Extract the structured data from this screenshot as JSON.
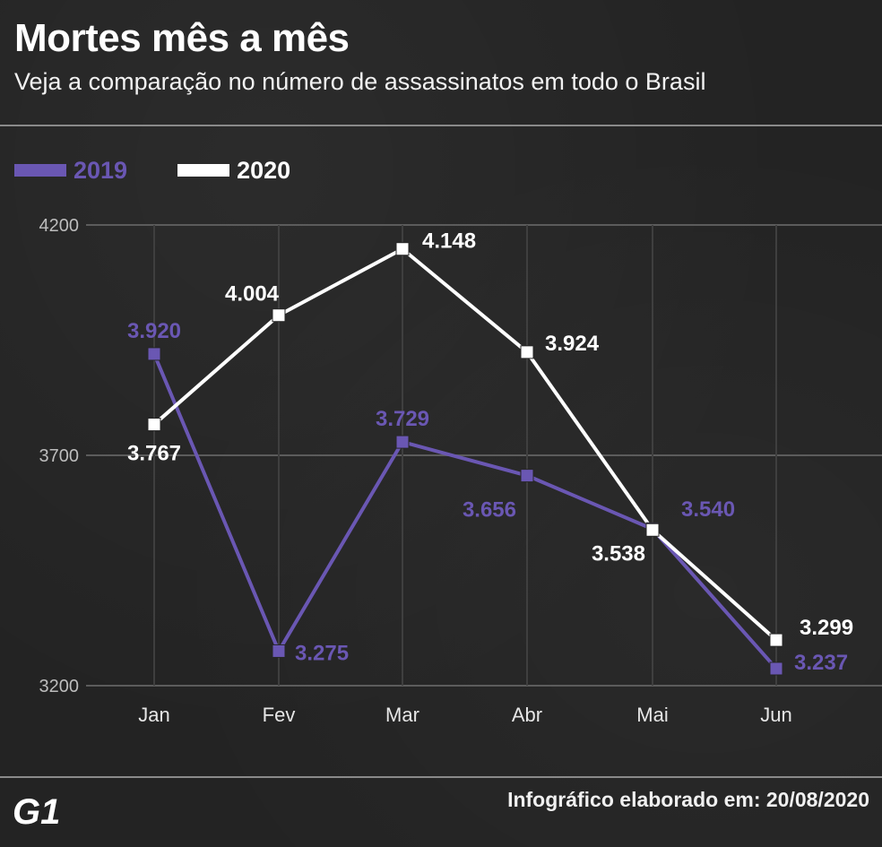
{
  "header": {
    "title": "Mortes mês a mês",
    "subtitle": "Veja a comparação no número de assassinatos em todo o Brasil"
  },
  "footer": {
    "logo": "G1",
    "credit": "Infográfico elaborado em: 20/08/2020"
  },
  "colors": {
    "background": "#262626",
    "series_2019": "#6a57b3",
    "series_2020": "#ffffff",
    "grid": "#5c5c5c",
    "axis_text": "#bdbdbd"
  },
  "chart_data": {
    "type": "line",
    "title": "Mortes mês a mês",
    "subtitle": "Veja a comparação no número de assassinatos em todo o Brasil",
    "xlabel": "",
    "ylabel": "",
    "categories": [
      "Jan",
      "Fev",
      "Mar",
      "Abr",
      "Mai",
      "Jun"
    ],
    "ylim": [
      3200,
      4200
    ],
    "yticks": [
      "3200",
      "3700",
      "4200"
    ],
    "grid": true,
    "legend": "top-left",
    "series": [
      {
        "name": "2019",
        "values": [
          3920,
          3275,
          3729,
          3656,
          3540,
          3237
        ],
        "labels": [
          "3.920",
          "3.275",
          "3.729",
          "3.656",
          "3.540",
          "3.237"
        ],
        "color": "#6a57b3"
      },
      {
        "name": "2020",
        "values": [
          3767,
          4004,
          4148,
          3924,
          3538,
          3299
        ],
        "labels": [
          "3.767",
          "4.004",
          "4.148",
          "3.924",
          "3.538",
          "3.299"
        ],
        "color": "#ffffff"
      }
    ]
  }
}
